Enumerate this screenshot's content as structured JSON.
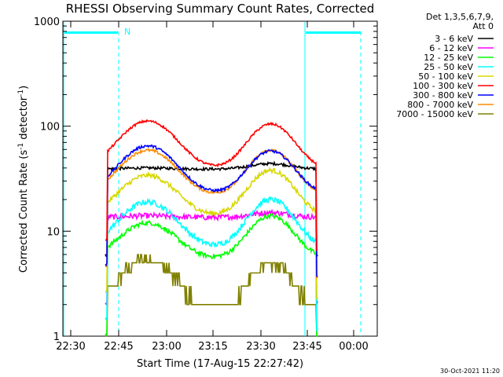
{
  "chart_data": {
    "type": "line",
    "title": "RHESSI Observing Summary Count Rates, Corrected",
    "xlabel": "Start Time (17-Aug-15 22:27:42)",
    "ylabel": "Corrected Count Rate (s",
    "ylabel_sup1": "-1",
    "ylabel_mid": " detector",
    "ylabel_sup2": "-1",
    "ylabel_end": ")",
    "y_scale": "log",
    "ylim": [
      1,
      1000
    ],
    "x_tick_labels": [
      "22:30",
      "22:45",
      "23:00",
      "23:15",
      "23:30",
      "23:45",
      "00:00"
    ],
    "y_tick_labels": [
      "1",
      "10",
      "100",
      "1000"
    ],
    "legend_header": [
      "Det 1,3,5,6,7,9,",
      "Att 0"
    ],
    "flag_label": "N",
    "timestamp": "30-Oct-2021 11:20",
    "series": [
      {
        "name": "3 - 6 keV",
        "color": "#000000"
      },
      {
        "name": "6 - 12 keV",
        "color": "#ff00ff"
      },
      {
        "name": "12 - 25 keV",
        "color": "#00ff00"
      },
      {
        "name": "25 - 50 keV",
        "color": "#00ffff"
      },
      {
        "name": "50 - 100 keV",
        "color": "#d8d800"
      },
      {
        "name": "100 - 300 keV",
        "color": "#ff0000"
      },
      {
        "name": "300 - 800 keV",
        "color": "#0000ff"
      },
      {
        "name": "800 - 7000 keV",
        "color": "#ff8c00"
      },
      {
        "name": "7000 - 15000 keV",
        "color": "#808000"
      }
    ]
  }
}
